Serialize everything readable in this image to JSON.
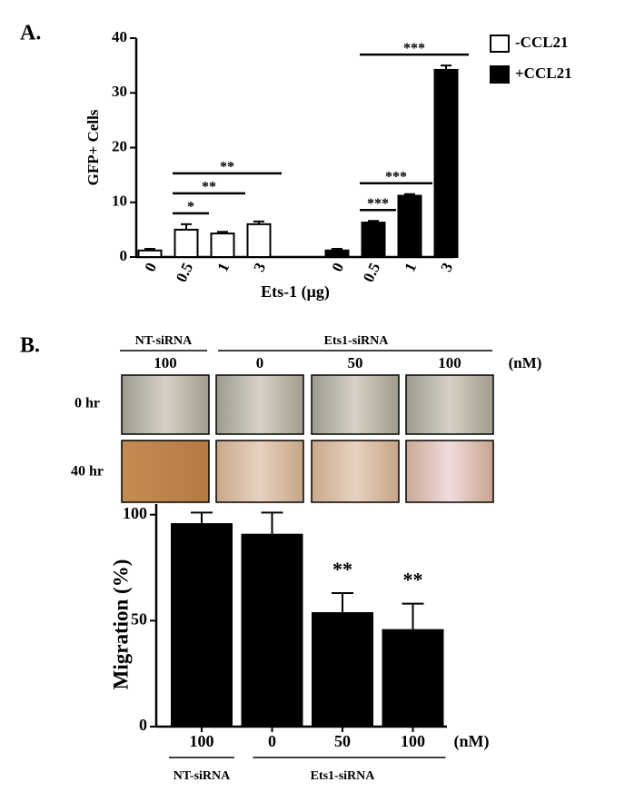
{
  "panels": {
    "label_a": "A.",
    "label_b": "B.",
    "groups": [
      "NT-siRNA",
      "Ets1-siRNA"
    ],
    "doses": [
      "100",
      "0",
      "50",
      "100"
    ],
    "unit": "(nM)",
    "times": [
      "0 hr",
      "40 hr"
    ]
  },
  "chart_data": [
    {
      "type": "bar",
      "y_label": "GFP+ Cells",
      "x_label": "Ets-1 (μg)",
      "categories": [
        "0",
        "0.5",
        "1",
        "3"
      ],
      "series": [
        {
          "name": "-CCL21",
          "color": "#ffffff",
          "values": [
            1.2,
            5.0,
            4.3,
            6.0
          ],
          "errors": [
            0.3,
            1.0,
            0.3,
            0.5
          ]
        },
        {
          "name": "+CCL21",
          "color": "#000000",
          "values": [
            1.2,
            6.3,
            11.2,
            34.2
          ],
          "errors": [
            0.3,
            0.3,
            0.3,
            0.8
          ]
        }
      ],
      "ylim": [
        0,
        40
      ],
      "yticks": [
        0,
        10,
        20,
        30,
        40
      ],
      "legend": "upper right",
      "annotations": [
        {
          "text": "*",
          "series": 0,
          "from": 0,
          "to": 1
        },
        {
          "text": "**",
          "series": 0,
          "from": 0,
          "to": 2
        },
        {
          "text": "**",
          "series": 0,
          "from": 0,
          "to": 3
        },
        {
          "text": "***",
          "series": 1,
          "from": 0,
          "to": 1
        },
        {
          "text": "***",
          "series": 1,
          "from": 0,
          "to": 2
        },
        {
          "text": "***",
          "series": 1,
          "from": 0,
          "to": 3
        }
      ]
    },
    {
      "type": "bar",
      "y_label": "Migration (%)",
      "unit_label": "(nM)",
      "categories": [
        "100",
        "0",
        "50",
        "100"
      ],
      "values": [
        96,
        91,
        54,
        46
      ],
      "errors": [
        5,
        10,
        9,
        12
      ],
      "color": "#000000",
      "ylim": [
        0,
        105
      ],
      "yticks": [
        0,
        50,
        100
      ],
      "group_labels": [
        {
          "text": "NT-siRNA",
          "from": 0,
          "to": 0
        },
        {
          "text": "Ets1-siRNA",
          "from": 1,
          "to": 3
        }
      ],
      "annotations": [
        {
          "text": "**",
          "index": 2
        },
        {
          "text": "**",
          "index": 3
        }
      ]
    }
  ]
}
